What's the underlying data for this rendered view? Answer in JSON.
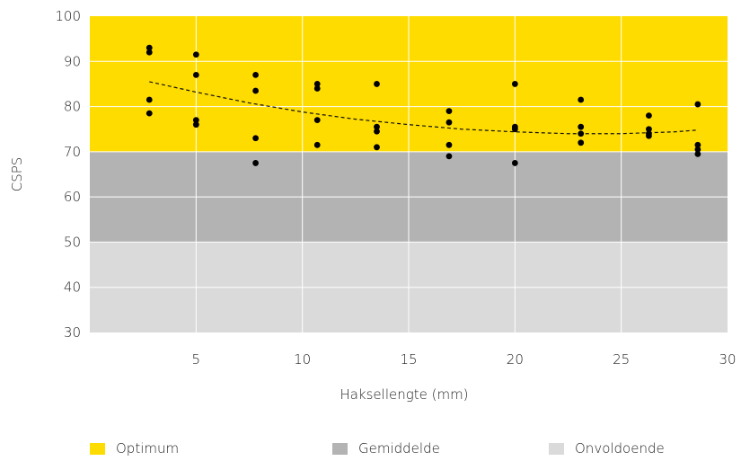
{
  "chart_data": {
    "type": "scatter",
    "title": "",
    "xlabel": "Haksellengte (mm)",
    "ylabel": "CSPS",
    "xlim": [
      0,
      30
    ],
    "ylim": [
      30,
      100
    ],
    "xticks": [
      5,
      10,
      15,
      20,
      25,
      30
    ],
    "yticks": [
      30,
      40,
      50,
      60,
      70,
      80,
      90,
      100
    ],
    "grid": true,
    "bands": [
      {
        "name": "Optimum",
        "from": 70,
        "to": 100,
        "color": "#FFDC00"
      },
      {
        "name": "Gemiddelde",
        "from": 50,
        "to": 70,
        "color": "#B3B3B3"
      },
      {
        "name": "Onvoldoende",
        "from": 30,
        "to": 50,
        "color": "#DADADA"
      }
    ],
    "points": [
      {
        "x": 2.8,
        "y": 93.0
      },
      {
        "x": 2.8,
        "y": 92.0
      },
      {
        "x": 2.8,
        "y": 81.5
      },
      {
        "x": 2.8,
        "y": 78.5
      },
      {
        "x": 5.0,
        "y": 91.5
      },
      {
        "x": 5.0,
        "y": 87.0
      },
      {
        "x": 5.0,
        "y": 77.0
      },
      {
        "x": 5.0,
        "y": 76.0
      },
      {
        "x": 7.8,
        "y": 87.0
      },
      {
        "x": 7.8,
        "y": 83.5
      },
      {
        "x": 7.8,
        "y": 73.0
      },
      {
        "x": 7.8,
        "y": 67.5
      },
      {
        "x": 10.7,
        "y": 85.0
      },
      {
        "x": 10.7,
        "y": 84.0
      },
      {
        "x": 10.7,
        "y": 77.0
      },
      {
        "x": 10.7,
        "y": 71.5
      },
      {
        "x": 13.5,
        "y": 85.0
      },
      {
        "x": 13.5,
        "y": 75.5
      },
      {
        "x": 13.5,
        "y": 74.5
      },
      {
        "x": 13.5,
        "y": 71.0
      },
      {
        "x": 16.9,
        "y": 79.0
      },
      {
        "x": 16.9,
        "y": 76.5
      },
      {
        "x": 16.9,
        "y": 71.5
      },
      {
        "x": 16.9,
        "y": 69.0
      },
      {
        "x": 20.0,
        "y": 85.0
      },
      {
        "x": 20.0,
        "y": 75.5
      },
      {
        "x": 20.0,
        "y": 75.0
      },
      {
        "x": 20.0,
        "y": 67.5
      },
      {
        "x": 23.1,
        "y": 81.5
      },
      {
        "x": 23.1,
        "y": 75.5
      },
      {
        "x": 23.1,
        "y": 74.0
      },
      {
        "x": 23.1,
        "y": 72.0
      },
      {
        "x": 26.3,
        "y": 78.0
      },
      {
        "x": 26.3,
        "y": 75.0
      },
      {
        "x": 26.3,
        "y": 74.0
      },
      {
        "x": 26.3,
        "y": 73.5
      },
      {
        "x": 28.6,
        "y": 80.5
      },
      {
        "x": 28.6,
        "y": 71.5
      },
      {
        "x": 28.6,
        "y": 70.5
      },
      {
        "x": 28.6,
        "y": 69.5
      }
    ],
    "trendline": {
      "style": "dashed",
      "x": [
        2.8,
        5,
        7.5,
        10,
        12.5,
        15,
        17.5,
        20,
        22.5,
        25,
        27.5,
        28.6
      ],
      "y": [
        85.5,
        83.2,
        80.8,
        78.8,
        77.2,
        76.0,
        75.0,
        74.4,
        74.0,
        74.0,
        74.4,
        74.8
      ]
    },
    "legend": {
      "placement": "bottom",
      "items": [
        {
          "label": "Optimum",
          "color": "#FFDC00"
        },
        {
          "label": "Gemiddelde",
          "color": "#B3B3B3"
        },
        {
          "label": "Onvoldoende",
          "color": "#DADADA"
        }
      ]
    }
  }
}
